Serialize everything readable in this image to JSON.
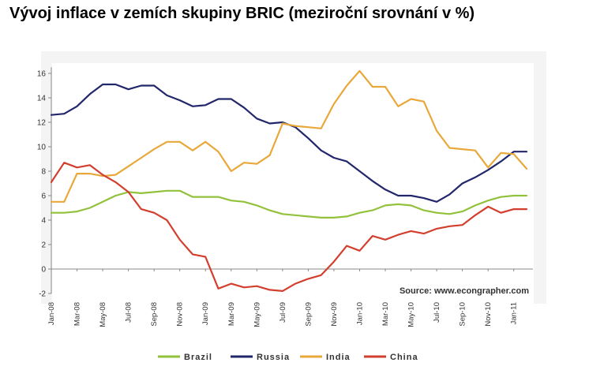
{
  "title": "Vývoj inflace v zemích skupiny BRIC (meziroční srovnání v %)",
  "chart_data": {
    "type": "line",
    "x": [
      "Jan-08",
      "Feb-08",
      "Mar-08",
      "Apr-08",
      "May-08",
      "Jun-08",
      "Jul-08",
      "Aug-08",
      "Sep-08",
      "Oct-08",
      "Nov-08",
      "Dec-08",
      "Jan-09",
      "Feb-09",
      "Mar-09",
      "Apr-09",
      "May-09",
      "Jun-09",
      "Jul-09",
      "Aug-09",
      "Sep-09",
      "Oct-09",
      "Nov-09",
      "Dec-09",
      "Jan-10",
      "Feb-10",
      "Mar-10",
      "Apr-10",
      "May-10",
      "Jun-10",
      "Jul-10",
      "Aug-10",
      "Sep-10",
      "Oct-10",
      "Nov-10",
      "Dec-10",
      "Jan-11",
      "Feb-11"
    ],
    "x_tick_labels": [
      "Jan-08",
      "Mar-08",
      "May-08",
      "Jul-08",
      "Sep-08",
      "Nov-08",
      "Jan-09",
      "Mar-09",
      "May-09",
      "Jul-09",
      "Sep-09",
      "Nov-09",
      "Jan-10",
      "Mar-10",
      "May-10",
      "Jul-10",
      "Sep-10",
      "Nov-10",
      "Jan-11"
    ],
    "y_ticks": [
      -2,
      0,
      2,
      4,
      6,
      8,
      10,
      12,
      14,
      16
    ],
    "ylim": [
      -2,
      16.5
    ],
    "grid": false,
    "legend_position": "bottom",
    "source": "Source: www.econgrapher.com",
    "series": [
      {
        "name": "Brazil",
        "color": "#92c13c",
        "values": [
          4.6,
          4.6,
          4.7,
          5.0,
          5.5,
          6.0,
          6.3,
          6.2,
          6.3,
          6.4,
          6.4,
          5.9,
          5.9,
          5.9,
          5.6,
          5.5,
          5.2,
          4.8,
          4.5,
          4.4,
          4.3,
          4.2,
          4.2,
          4.3,
          4.6,
          4.8,
          5.2,
          5.3,
          5.2,
          4.8,
          4.6,
          4.5,
          4.7,
          5.2,
          5.6,
          5.9,
          6.0,
          6.0
        ]
      },
      {
        "name": "Russia",
        "color": "#22266b",
        "values": [
          12.6,
          12.7,
          13.3,
          14.3,
          15.1,
          15.1,
          14.7,
          15.0,
          15.0,
          14.2,
          13.8,
          13.3,
          13.4,
          13.9,
          13.9,
          13.2,
          12.3,
          11.9,
          12.0,
          11.6,
          10.7,
          9.7,
          9.1,
          8.8,
          8.0,
          7.2,
          6.5,
          6.0,
          6.0,
          5.8,
          5.5,
          6.1,
          7.0,
          7.5,
          8.1,
          8.8,
          9.6,
          9.6
        ]
      },
      {
        "name": "India",
        "color": "#e8a83a",
        "values": [
          5.5,
          5.5,
          7.8,
          7.8,
          7.6,
          7.7,
          8.4,
          9.1,
          9.8,
          10.4,
          10.4,
          9.7,
          10.4,
          9.6,
          8.0,
          8.7,
          8.6,
          9.3,
          11.9,
          11.7,
          11.6,
          11.5,
          13.5,
          15.0,
          16.2,
          14.9,
          14.9,
          13.3,
          13.9,
          13.7,
          11.3,
          9.9,
          9.8,
          9.7,
          8.3,
          9.5,
          9.4,
          8.2
        ]
      },
      {
        "name": "China",
        "color": "#d33f2e",
        "values": [
          7.1,
          8.7,
          8.3,
          8.5,
          7.7,
          7.1,
          6.3,
          4.9,
          4.6,
          4.0,
          2.4,
          1.2,
          1.0,
          -1.6,
          -1.2,
          -1.5,
          -1.4,
          -1.7,
          -1.8,
          -1.2,
          -0.8,
          -0.5,
          0.6,
          1.9,
          1.5,
          2.7,
          2.4,
          2.8,
          3.1,
          2.9,
          3.3,
          3.5,
          3.6,
          4.4,
          5.1,
          4.6,
          4.9,
          4.9
        ]
      }
    ]
  }
}
